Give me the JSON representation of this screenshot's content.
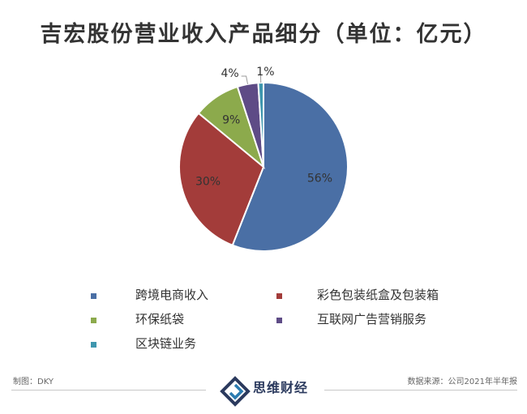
{
  "header": {
    "title": "吉宏股份营业收入产品细分（单位：亿元）"
  },
  "chart_data": {
    "type": "pie",
    "title": "吉宏股份营业收入产品细分（单位：亿元）",
    "start_angle_deg": 0,
    "direction": "clockwise",
    "legend_position": "bottom",
    "slices": [
      {
        "label": "跨境电商收入",
        "value": 56,
        "display": "56%",
        "color": "#4a6fa5"
      },
      {
        "label": "彩色包装纸盒及包装箱",
        "value": 30,
        "display": "30%",
        "color": "#a33c3a"
      },
      {
        "label": "环保纸袋",
        "value": 9,
        "display": "9%",
        "color": "#8caa4c"
      },
      {
        "label": "互联网广告营销服务",
        "value": 4,
        "display": "4%",
        "color": "#5e4b86"
      },
      {
        "label": "区块链业务",
        "value": 1,
        "display": "1%",
        "color": "#3e96ae"
      }
    ]
  },
  "footer": {
    "left": "制图：DKY",
    "right": "数据来源：公司2021年半年报",
    "logo_text": "思维财经",
    "logo_icon": "brand-logo-icon"
  }
}
